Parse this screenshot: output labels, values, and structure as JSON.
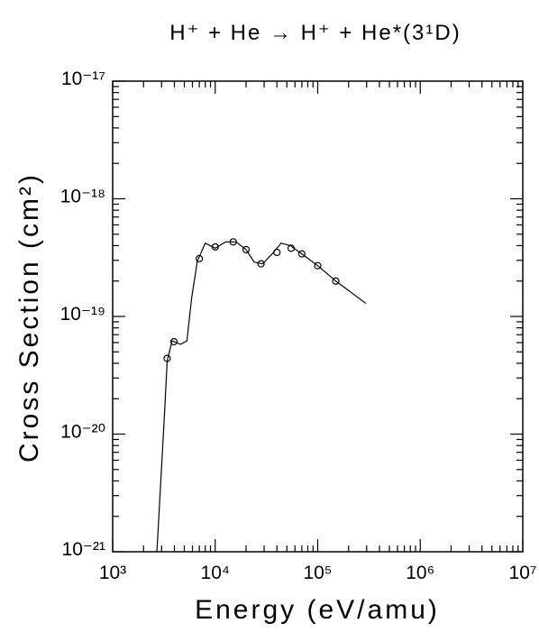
{
  "chart_data": {
    "type": "line",
    "title": "H⁺ + He → H⁺ + He*(3¹D)",
    "xlabel": "Energy (eV/amu)",
    "ylabel": "Cross Section (cm²)",
    "xscale": "log",
    "yscale": "log",
    "xlim": [
      1000,
      10000000
    ],
    "ylim": [
      1e-21,
      1e-17
    ],
    "xticks": [
      {
        "value": 1000,
        "label": "10³"
      },
      {
        "value": 10000,
        "label": "10⁴"
      },
      {
        "value": 100000,
        "label": "10⁵"
      },
      {
        "value": 1000000,
        "label": "10⁶"
      },
      {
        "value": 10000000,
        "label": "10⁷"
      }
    ],
    "yticks": [
      {
        "value": 1e-21,
        "label": "10⁻²¹"
      },
      {
        "value": 1e-20,
        "label": "10⁻²⁰"
      },
      {
        "value": 1e-19,
        "label": "10⁻¹⁹"
      },
      {
        "value": 1e-18,
        "label": "10⁻¹⁸"
      },
      {
        "value": 1e-17,
        "label": "10⁻¹⁷"
      }
    ],
    "series": [
      {
        "style": "line",
        "color": "#000000",
        "x": [
          2700,
          3200,
          3400,
          3800,
          4600,
          5300,
          5900,
          6700,
          8000,
          10000,
          12600,
          16000,
          20000,
          24000,
          29000,
          36000,
          44000,
          54000,
          70000,
          100000,
          150000,
          295000
        ],
        "values": [
          1e-21,
          1.46e-20,
          4.2e-20,
          6.2e-20,
          5.8e-20,
          6.2e-20,
          1.45e-19,
          2.95e-19,
          4.2e-19,
          3.8e-19,
          4.3e-19,
          4.3e-19,
          3.7e-19,
          2.9e-19,
          2.8e-19,
          3.4e-19,
          4.2e-19,
          4e-19,
          3.4e-19,
          2.7e-19,
          2e-19,
          1.29e-19
        ]
      },
      {
        "style": "markers",
        "color": "#000000",
        "x": [
          3400,
          3960,
          7000,
          10000,
          15000,
          20000,
          28000,
          40000,
          55000,
          70000,
          100000,
          150000
        ],
        "values": [
          4.4e-20,
          6.1e-20,
          3.1e-19,
          3.9e-19,
          4.3e-19,
          3.7e-19,
          2.8e-19,
          3.5e-19,
          3.8e-19,
          3.4e-19,
          2.7e-19,
          2e-19
        ]
      }
    ]
  }
}
